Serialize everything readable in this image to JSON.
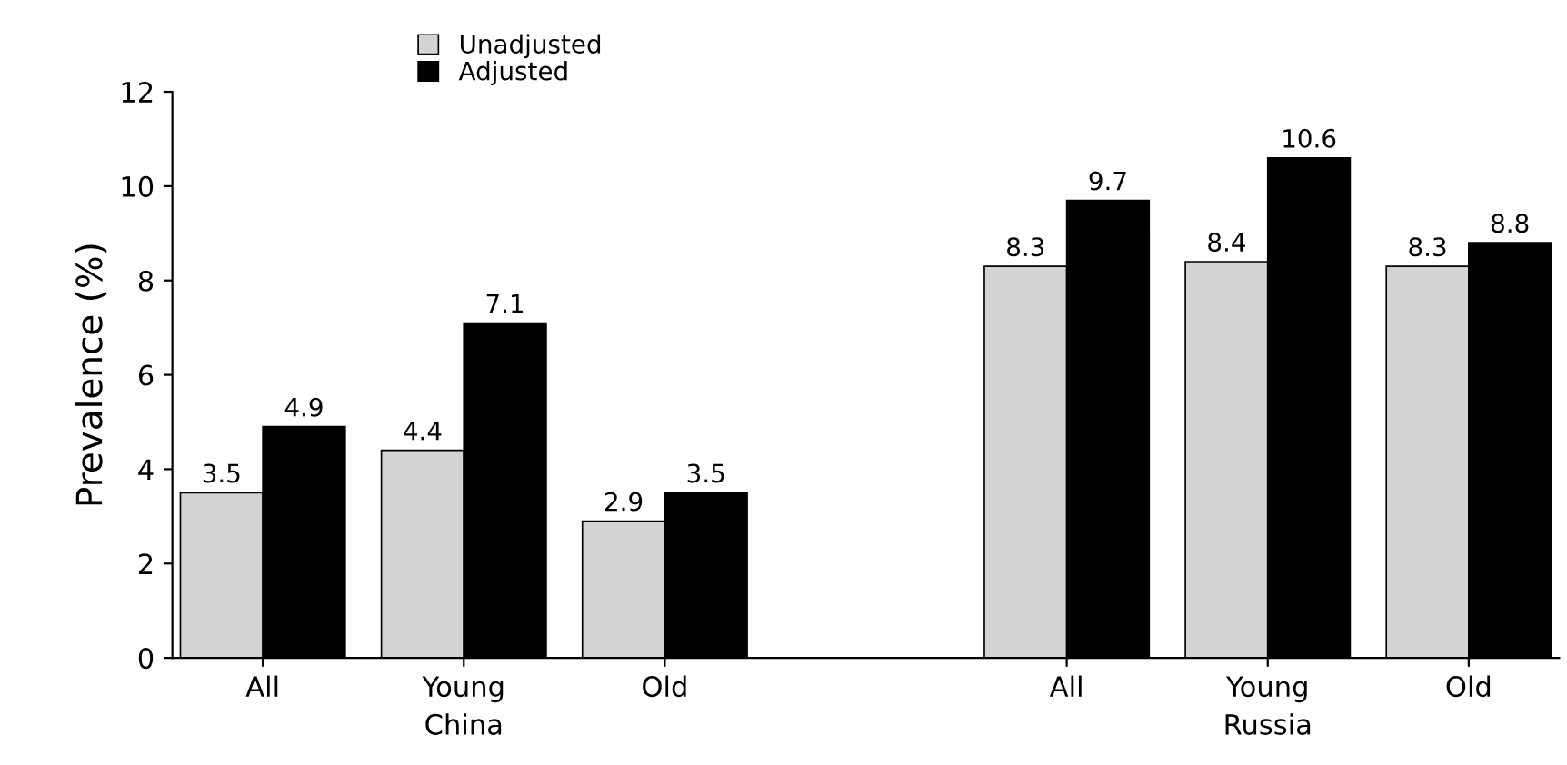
{
  "chart_data": {
    "type": "bar",
    "ylabel": "Prevalence (%)",
    "categories": [
      "All",
      "Young",
      "Old",
      null,
      "All",
      "Young",
      "Old"
    ],
    "series": [
      {
        "name": "Unadjusted",
        "color": "#d3d3d3",
        "values": [
          3.5,
          4.4,
          2.9,
          null,
          8.3,
          8.4,
          8.3
        ]
      },
      {
        "name": "Adjusted",
        "color": "#000000",
        "values": [
          4.9,
          7.1,
          3.5,
          null,
          9.7,
          10.6,
          8.8
        ]
      }
    ],
    "ylim": [
      0,
      12
    ],
    "yticks": [
      0,
      2,
      4,
      6,
      8,
      10,
      12
    ],
    "grid": false,
    "legend": "top left",
    "data_labels": true,
    "annotations": [
      "China",
      "Russia"
    ]
  }
}
